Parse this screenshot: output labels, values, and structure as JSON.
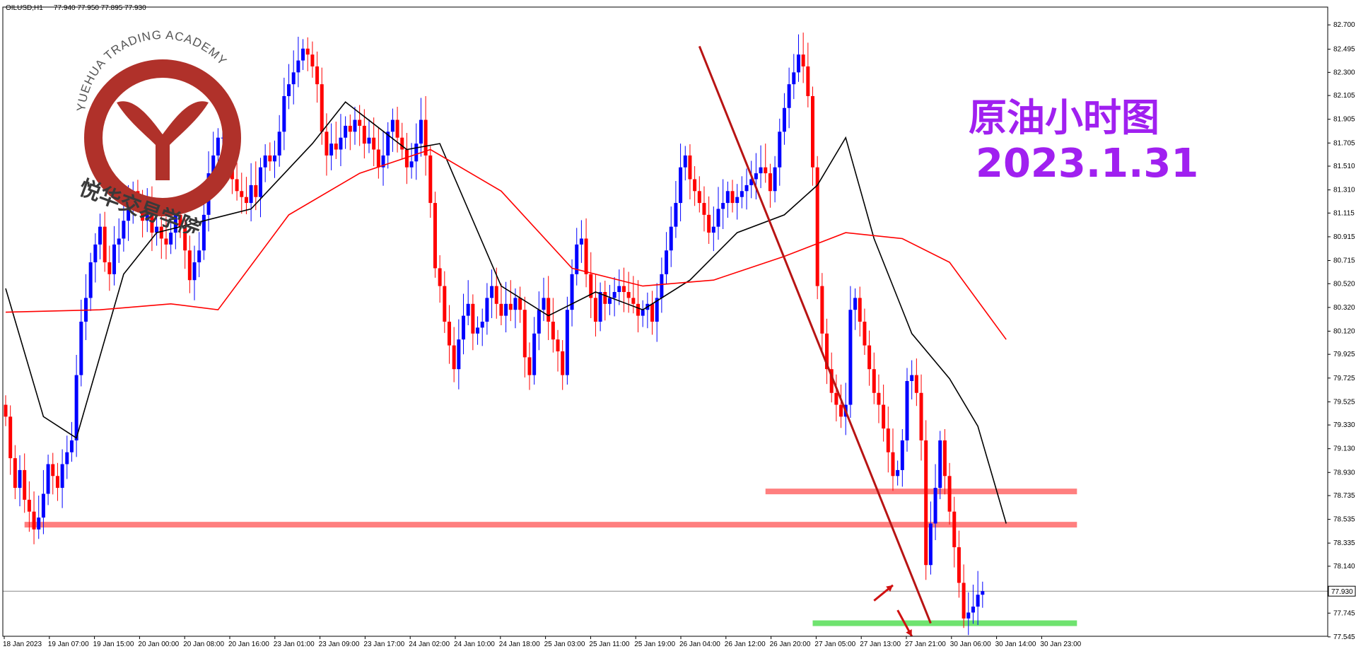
{
  "header": {
    "symbol": "OILUSD,H1",
    "ohlc": "77.940 77.950 77.895 77.930"
  },
  "watermark": {
    "academy_en": "YUEHUA TRADING ACADEMY",
    "academy_cn": "悦华交易学院",
    "ring_color": "#b0312a"
  },
  "overlay": {
    "title_cn": "原油小时图",
    "date": "2023.1.31",
    "color": "#a020f0"
  },
  "colors": {
    "bull": "#0000ff",
    "bear": "#ff0000",
    "ma_fast": "#000000",
    "ma_slow": "#ff0000",
    "zone": "#ff7f7f",
    "support": "#6fe36f",
    "trend": "#b81414",
    "last_price_line": "#888888"
  },
  "chart_data": {
    "type": "candlestick",
    "instrument": "OILUSD",
    "timeframe": "H1",
    "ylim": [
      77.55,
      82.85
    ],
    "y_ticks": [
      "82.700",
      "82.495",
      "82.300",
      "82.105",
      "81.905",
      "81.705",
      "81.510",
      "81.310",
      "81.115",
      "80.915",
      "80.715",
      "80.520",
      "80.320",
      "80.120",
      "79.925",
      "79.725",
      "79.525",
      "79.330",
      "79.130",
      "78.930",
      "78.735",
      "78.535",
      "78.335",
      "78.140",
      "77.745",
      "77.545"
    ],
    "x_ticks": [
      "18 Jan 2023",
      "19 Jan 07:00",
      "19 Jan 15:00",
      "20 Jan 00:00",
      "20 Jan 08:00",
      "20 Jan 16:00",
      "23 Jan 01:00",
      "23 Jan 09:00",
      "23 Jan 17:00",
      "24 Jan 02:00",
      "24 Jan 10:00",
      "24 Jan 18:00",
      "25 Jan 03:00",
      "25 Jan 11:00",
      "25 Jan 19:00",
      "26 Jan 04:00",
      "26 Jan 12:00",
      "26 Jan 20:00",
      "27 Jan 05:00",
      "27 Jan 13:00",
      "27 Jan 21:00",
      "30 Jan 06:00",
      "30 Jan 14:00",
      "30 Jan 23:00"
    ],
    "last_price": "77.930",
    "candle_closes": [
      79.4,
      79.05,
      78.8,
      78.95,
      78.7,
      78.6,
      78.45,
      78.55,
      78.75,
      79.0,
      78.9,
      78.8,
      79.0,
      79.1,
      79.2,
      79.75,
      80.2,
      80.4,
      80.7,
      80.85,
      81.0,
      80.7,
      80.6,
      80.85,
      80.9,
      81.05,
      81.15,
      81.3,
      81.2,
      81.05,
      81.2,
      80.95,
      81.0,
      80.9,
      80.85,
      80.95,
      81.1,
      81.0,
      80.8,
      80.55,
      80.7,
      80.8,
      81.1,
      81.45,
      81.6,
      81.75,
      81.75,
      81.7,
      81.4,
      81.3,
      81.25,
      81.2,
      81.35,
      81.25,
      81.5,
      81.6,
      81.55,
      81.6,
      81.8,
      82.1,
      82.2,
      82.3,
      82.4,
      82.5,
      82.45,
      82.35,
      82.2,
      81.8,
      81.6,
      81.7,
      81.65,
      81.75,
      81.85,
      81.8,
      81.9,
      81.85,
      81.7,
      81.75,
      81.65,
      81.5,
      81.6,
      81.8,
      81.9,
      81.75,
      81.65,
      81.5,
      81.55,
      81.7,
      81.9,
      81.6,
      81.2,
      80.65,
      80.5,
      80.2,
      80.0,
      79.8,
      80.05,
      80.25,
      80.35,
      80.1,
      80.15,
      80.2,
      80.4,
      80.5,
      80.35,
      80.25,
      80.35,
      80.3,
      80.4,
      80.3,
      79.9,
      79.75,
      80.1,
      80.3,
      80.4,
      80.2,
      80.05,
      79.95,
      79.75,
      80.3,
      80.6,
      80.85,
      80.9,
      80.6,
      80.4,
      80.2,
      80.45,
      80.35,
      80.4,
      80.45,
      80.5,
      80.45,
      80.4,
      80.35,
      80.25,
      80.3,
      80.35,
      80.2,
      80.4,
      80.6,
      80.8,
      81.0,
      81.2,
      81.5,
      81.6,
      81.4,
      81.3,
      81.2,
      81.1,
      80.95,
      81.0,
      81.15,
      81.2,
      81.3,
      81.2,
      81.25,
      81.3,
      81.35,
      81.4,
      81.45,
      81.5,
      81.45,
      81.3,
      81.5,
      81.8,
      82.0,
      82.2,
      82.3,
      82.45,
      82.35,
      82.1,
      81.5,
      80.5,
      80.1,
      79.8,
      79.6,
      79.5,
      79.4,
      79.5,
      80.3,
      80.4,
      80.2,
      80.0,
      79.8,
      79.6,
      79.5,
      79.3,
      79.1,
      78.9,
      78.95,
      79.2,
      79.7,
      79.75,
      79.6,
      79.2,
      78.15,
      78.5,
      78.8,
      79.2,
      78.9,
      78.6,
      78.3,
      78.0,
      77.7,
      77.75,
      77.8,
      77.9,
      77.93
    ],
    "ma_fast_points": [
      [
        0,
        80.48
      ],
      [
        8,
        79.4
      ],
      [
        15,
        79.22
      ],
      [
        25,
        80.6
      ],
      [
        32,
        80.95
      ],
      [
        42,
        81.05
      ],
      [
        52,
        81.15
      ],
      [
        65,
        81.7
      ],
      [
        72,
        82.05
      ],
      [
        85,
        81.65
      ],
      [
        92,
        81.7
      ],
      [
        105,
        80.5
      ],
      [
        115,
        80.25
      ],
      [
        125,
        80.45
      ],
      [
        135,
        80.3
      ],
      [
        145,
        80.55
      ],
      [
        155,
        80.95
      ],
      [
        165,
        81.1
      ],
      [
        172,
        81.35
      ],
      [
        178,
        81.75
      ],
      [
        184,
        80.9
      ],
      [
        192,
        80.1
      ],
      [
        200,
        79.72
      ],
      [
        206,
        79.32
      ],
      [
        212,
        78.5
      ]
    ],
    "ma_slow_points": [
      [
        0,
        80.28
      ],
      [
        20,
        80.3
      ],
      [
        35,
        80.35
      ],
      [
        45,
        80.3
      ],
      [
        60,
        81.1
      ],
      [
        75,
        81.45
      ],
      [
        90,
        81.65
      ],
      [
        105,
        81.3
      ],
      [
        120,
        80.65
      ],
      [
        135,
        80.5
      ],
      [
        150,
        80.55
      ],
      [
        165,
        80.75
      ],
      [
        178,
        80.95
      ],
      [
        190,
        80.9
      ],
      [
        200,
        80.7
      ],
      [
        212,
        80.05
      ]
    ],
    "zones": [
      {
        "name": "resistance-lower",
        "price": 78.49,
        "from": 4,
        "to": 227
      },
      {
        "name": "resistance-upper",
        "price": 78.77,
        "from": 161,
        "to": 227
      }
    ],
    "support": {
      "price": 77.66,
      "from": 171,
      "to": 227
    },
    "trendline": {
      "start": [
        147,
        82.52
      ],
      "end": [
        196,
        77.66
      ]
    },
    "arrows": [
      {
        "name": "arrow-up",
        "from": [
          184,
          77.85
        ],
        "to": [
          188,
          77.98
        ]
      },
      {
        "name": "arrow-down",
        "from": [
          189,
          77.77
        ],
        "to": [
          192,
          77.55
        ]
      }
    ]
  }
}
